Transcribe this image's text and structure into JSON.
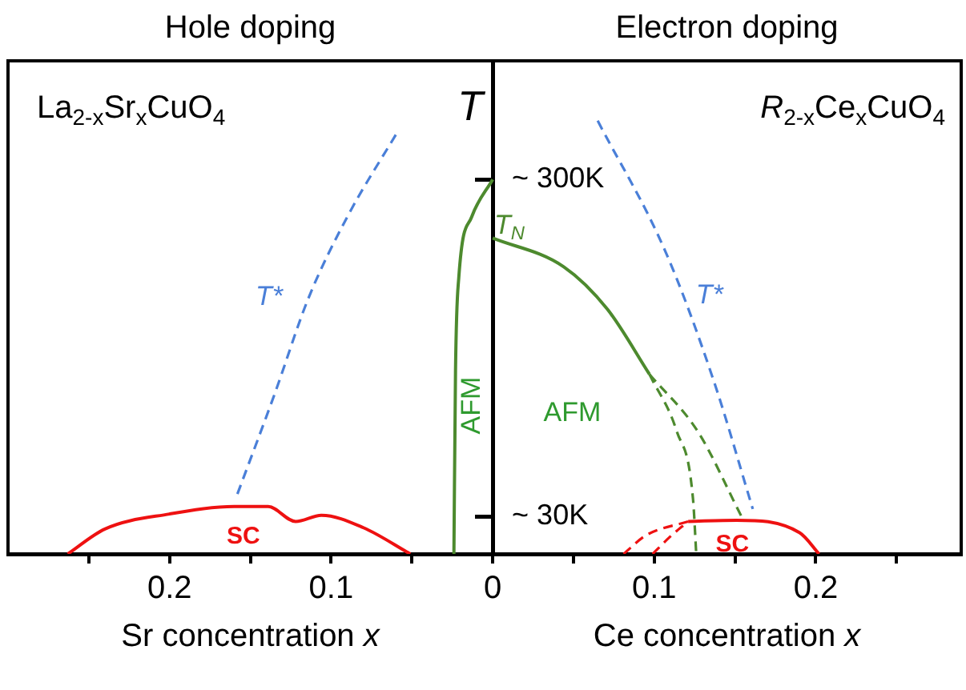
{
  "chart_data": {
    "type": "line",
    "ylabel": "T",
    "xlim": [
      -0.3,
      0.29
    ],
    "ylim": [
      0,
      395
    ],
    "xticks": [
      {
        "value": -0.25,
        "label": null
      },
      {
        "value": -0.2,
        "label": "0.2"
      },
      {
        "value": -0.15,
        "label": null
      },
      {
        "value": -0.1,
        "label": "0.1"
      },
      {
        "value": -0.05,
        "label": null
      },
      0,
      {
        "value": 0.05,
        "label": null
      },
      {
        "value": 0.1,
        "label": "0.1"
      },
      {
        "value": 0.15,
        "label": null
      },
      {
        "value": 0.2,
        "label": "0.2"
      },
      {
        "value": 0.25,
        "label": null
      }
    ],
    "yticks": [
      {
        "value": 300,
        "label": "~ 300K"
      },
      {
        "value": 30,
        "label": "~ 30K"
      }
    ],
    "grid": false,
    "legend": false,
    "marker": "none",
    "series": [
      {
        "color": "#4a7fd8",
        "line_style": "dashed",
        "x": [
          -0.158,
          -0.135,
          -0.114,
          -0.09,
          -0.058
        ],
        "values": [
          48,
          128,
          205,
          270,
          340
        ]
      },
      {
        "color": "#ee1111",
        "line_style": "solid",
        "x": [
          -0.263,
          -0.24,
          -0.2,
          -0.16,
          -0.139,
          -0.122,
          -0.106,
          -0.08,
          -0.051
        ],
        "values": [
          0,
          20,
          32,
          38,
          38,
          26,
          31,
          21,
          0
        ]
      },
      {
        "color": "#4d8a2e",
        "line_style": "solid",
        "x": [
          0,
          -0.013,
          -0.021,
          -0.023,
          -0.024
        ],
        "values": [
          300,
          270,
          221,
          147,
          0
        ]
      },
      {
        "color": "#4d8a2e",
        "line_style": "solid",
        "x": [
          0,
          0.044,
          0.071,
          0.097
        ],
        "values": [
          253,
          230,
          196,
          144
        ]
      },
      {
        "color": "#4d8a2e",
        "line_style": "dashed",
        "x": [
          0.097,
          0.114,
          0.124,
          0.126
        ],
        "values": [
          144,
          98,
          44,
          0
        ]
      },
      {
        "color": "#4d8a2e",
        "line_style": "dashed",
        "x": [
          0.097,
          0.127,
          0.154
        ],
        "values": [
          144,
          98,
          30
        ]
      },
      {
        "color": "#4a7fd8",
        "line_style": "dashed",
        "x": [
          0.065,
          0.107,
          0.137,
          0.161
        ],
        "values": [
          347,
          242,
          138,
          36
        ]
      },
      {
        "color": "#ee1111",
        "line_style": "solid",
        "x": [
          0.121,
          0.151,
          0.19,
          0.202
        ],
        "values": [
          26,
          27,
          17,
          0
        ]
      },
      {
        "color": "#ee1111",
        "line_style": "dashed",
        "x": [
          0.081,
          0.095,
          0.121
        ],
        "values": [
          0,
          15,
          26
        ]
      },
      {
        "color": "#ee1111",
        "line_style": "dashed",
        "x": [
          0.099,
          0.11,
          0.121
        ],
        "values": [
          0,
          14,
          26
        ]
      }
    ],
    "annotations": [
      "Hole doping",
      "Electron doping",
      "La$_{2-x}$Sr$_{x}$CuO$_{4}$",
      "R$_{2-x}$Ce$_{x}$CuO$_{4}$",
      "Sr concentration x",
      "Ce concentration x",
      "T*",
      "T*",
      "T$_{N}$",
      "AFM",
      "AFM",
      "SC",
      "SC"
    ]
  }
}
